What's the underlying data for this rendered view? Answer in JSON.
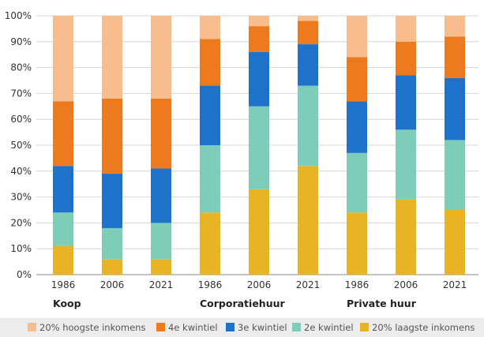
{
  "colors": {
    "q5": "#f7bd8c",
    "q4": "#ee7a1e",
    "q3": "#1e72c9",
    "q2": "#7ecdb8",
    "q1": "#e8b325",
    "grid": "#d5d5d5",
    "axis": "#8a8a8a",
    "background": "#ffffff"
  },
  "legend": [
    {
      "key": "q5",
      "label": "20% hoogste inkomens"
    },
    {
      "key": "q4",
      "label": "4e kwintiel"
    },
    {
      "key": "q3",
      "label": "3e kwintiel"
    },
    {
      "key": "q2",
      "label": "2e kwintiel"
    },
    {
      "key": "q1",
      "label": "20% laagste inkomens"
    }
  ],
  "chart_data": {
    "type": "bar",
    "stacked": true,
    "ylim": [
      0,
      100
    ],
    "yticks": [
      "0%",
      "10%",
      "20%",
      "30%",
      "40%",
      "50%",
      "60%",
      "70%",
      "80%",
      "90%",
      "100%"
    ],
    "grid": true,
    "legend_position": "bottom",
    "groups": [
      {
        "label": "Koop",
        "bars": [
          0,
          1,
          2
        ]
      },
      {
        "label": "Corporatiehuur",
        "bars": [
          3,
          4,
          5
        ]
      },
      {
        "label": "Private huur",
        "bars": [
          6,
          7,
          8
        ]
      }
    ],
    "categories": [
      "1986",
      "2006",
      "2021",
      "1986",
      "2006",
      "2021",
      "1986",
      "2006",
      "2021"
    ],
    "series": [
      {
        "key": "q1",
        "name": "20% laagste inkomens",
        "values": [
          11,
          6,
          6,
          24,
          33,
          42,
          24,
          29,
          25
        ]
      },
      {
        "key": "q2",
        "name": "2e kwintiel",
        "values": [
          13,
          12,
          14,
          26,
          32,
          31,
          23,
          27,
          27
        ]
      },
      {
        "key": "q3",
        "name": "3e kwintiel",
        "values": [
          18,
          21,
          21,
          23,
          21,
          16,
          20,
          21,
          24
        ]
      },
      {
        "key": "q4",
        "name": "4e kwintiel",
        "values": [
          25,
          29,
          27,
          18,
          10,
          9,
          17,
          13,
          16
        ]
      },
      {
        "key": "q5",
        "name": "20% hoogste inkomens",
        "values": [
          33,
          32,
          32,
          9,
          4,
          2,
          16,
          10,
          8
        ]
      }
    ]
  }
}
